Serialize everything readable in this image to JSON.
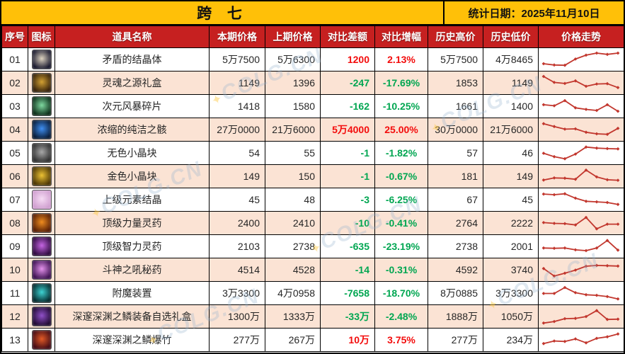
{
  "title": "跨 七",
  "stat_date": "统计日期：2025年11月10日",
  "watermark_text": "COLG.CN",
  "colors": {
    "title_yellow": "#FFC008",
    "header_red": "#C62020",
    "row_alt": "#FBE3D4",
    "up_red": "#F30D0D",
    "down_green": "#00A651",
    "trend_line": "#C2372E",
    "border": "#000000"
  },
  "table": {
    "columns": [
      {
        "key": "index",
        "label": "序号"
      },
      {
        "key": "icon",
        "label": "图标"
      },
      {
        "key": "name",
        "label": "道具名称"
      },
      {
        "key": "current",
        "label": "本期价格"
      },
      {
        "key": "previous",
        "label": "上期价格"
      },
      {
        "key": "diff",
        "label": "对比差额"
      },
      {
        "key": "pct",
        "label": "对比增幅"
      },
      {
        "key": "high",
        "label": "历史高价"
      },
      {
        "key": "low",
        "label": "历史低价"
      },
      {
        "key": "trend",
        "label": "价格走势"
      }
    ],
    "rows": [
      {
        "index": "01",
        "name": "矛盾的结晶体",
        "current": "5万7500",
        "previous": "5万6300",
        "diff": "1200",
        "pct": "2.13%",
        "dir": "up",
        "high": "5万7500",
        "low": "4万8465",
        "icon": {
          "name": "contradiction-crystal-icon",
          "c1": "#ddd3c0",
          "c2": "#17172c"
        },
        "trend": [
          0.25,
          0.17,
          0.15,
          0.55,
          0.8,
          0.93,
          0.85,
          0.93
        ]
      },
      {
        "index": "02",
        "name": "灵魂之源礼盒",
        "current": "1149",
        "previous": "1396",
        "diff": "-247",
        "pct": "-17.69%",
        "dir": "down",
        "high": "1853",
        "low": "1149",
        "icon": {
          "name": "soul-source-giftbox-icon",
          "c1": "#d2a033",
          "c2": "#35200a"
        },
        "trend": [
          0.93,
          0.55,
          0.48,
          0.65,
          0.3,
          0.45,
          0.47,
          0.22
        ]
      },
      {
        "index": "03",
        "name": "次元风暴碎片",
        "current": "1418",
        "previous": "1580",
        "diff": "-162",
        "pct": "-10.25%",
        "dir": "down",
        "high": "1661",
        "low": "1400",
        "icon": {
          "name": "dimension-storm-shard-icon",
          "c1": "#7fd9a0",
          "c2": "#0b2d18"
        },
        "trend": [
          0.62,
          0.55,
          0.88,
          0.42,
          0.32,
          0.25,
          0.62,
          0.2
        ]
      },
      {
        "index": "04",
        "name": "浓缩的纯洁之骸",
        "current": "27万0000",
        "previous": "21万6000",
        "diff": "5万4000",
        "pct": "25.00%",
        "dir": "up",
        "high": "30万0000",
        "low": "21万6000",
        "icon": {
          "name": "condensed-purity-orb-icon",
          "c1": "#3f8ef0",
          "c2": "#071a36"
        },
        "trend": [
          0.9,
          0.72,
          0.55,
          0.57,
          0.35,
          0.25,
          0.22,
          0.6
        ]
      },
      {
        "index": "05",
        "name": "无色小晶块",
        "current": "54",
        "previous": "55",
        "diff": "-1",
        "pct": "-1.82%",
        "dir": "down",
        "high": "57",
        "low": "46",
        "icon": {
          "name": "colorless-cube-icon",
          "c1": "#a8a8a8",
          "c2": "#2e2e2e"
        },
        "trend": [
          0.5,
          0.28,
          0.15,
          0.45,
          0.9,
          0.83,
          0.8,
          0.78
        ]
      },
      {
        "index": "06",
        "name": "金色小晶块",
        "current": "149",
        "previous": "150",
        "diff": "-1",
        "pct": "-0.67%",
        "dir": "down",
        "high": "181",
        "low": "149",
        "icon": {
          "name": "golden-cube-icon",
          "c1": "#ecc234",
          "c2": "#4a3404"
        },
        "trend": [
          0.28,
          0.42,
          0.4,
          0.33,
          0.92,
          0.48,
          0.3,
          0.27
        ]
      },
      {
        "index": "07",
        "name": "上级元素结晶",
        "current": "45",
        "previous": "48",
        "diff": "-3",
        "pct": "-6.25%",
        "dir": "down",
        "high": "67",
        "low": "45",
        "icon": {
          "name": "elemental-crystal-icon",
          "c1": "#f6dcf4",
          "c2": "#cf9ecf"
        },
        "trend": [
          0.88,
          0.84,
          0.9,
          0.62,
          0.42,
          0.38,
          0.34,
          0.22
        ]
      },
      {
        "index": "08",
        "name": "顶级力量灵药",
        "current": "2400",
        "previous": "2410",
        "diff": "-10",
        "pct": "-0.41%",
        "dir": "down",
        "high": "2764",
        "low": "2222",
        "icon": {
          "name": "strength-potion-icon",
          "c1": "#ef8c1f",
          "c2": "#551d05"
        },
        "trend": [
          0.55,
          0.5,
          0.48,
          0.4,
          0.88,
          0.15,
          0.45,
          0.45
        ]
      },
      {
        "index": "09",
        "name": "顶级智力灵药",
        "current": "2103",
        "previous": "2738",
        "diff": "-635",
        "pct": "-23.19%",
        "dir": "down",
        "high": "2738",
        "low": "2001",
        "icon": {
          "name": "intellect-potion-icon",
          "c1": "#c565e2",
          "c2": "#2d0a3e"
        },
        "trend": [
          0.42,
          0.4,
          0.42,
          0.3,
          0.25,
          0.42,
          0.9,
          0.28
        ]
      },
      {
        "index": "10",
        "name": "斗神之吼秘药",
        "current": "4514",
        "previous": "4528",
        "diff": "-14",
        "pct": "-0.31%",
        "dir": "down",
        "high": "4592",
        "low": "3740",
        "icon": {
          "name": "battle-god-elixir-icon",
          "c1": "#e492ec",
          "c2": "#3c1050"
        },
        "trend": [
          0.6,
          0.12,
          0.3,
          0.5,
          0.75,
          0.8,
          0.78,
          0.76
        ]
      },
      {
        "index": "11",
        "name": "附魔装置",
        "current": "3万3300",
        "previous": "4万0958",
        "diff": "-7658",
        "pct": "-18.70%",
        "dir": "down",
        "high": "8万0885",
        "low": "3万3300",
        "icon": {
          "name": "enchant-device-icon",
          "c1": "#3ed2d2",
          "c2": "#04282c"
        },
        "trend": [
          0.5,
          0.5,
          0.88,
          0.55,
          0.42,
          0.38,
          0.3,
          0.15
        ]
      },
      {
        "index": "12",
        "name": "深邃深渊之鳞装备自选礼盒",
        "current": "1300万",
        "previous": "1333万",
        "diff": "-33万",
        "pct": "-2.48%",
        "dir": "down",
        "high": "1888万",
        "low": "1050万",
        "icon": {
          "name": "abyss-scale-equip-giftbox-icon",
          "c1": "#9050c8",
          "c2": "#1e0830"
        },
        "trend": [
          0.1,
          0.2,
          0.38,
          0.4,
          0.52,
          0.9,
          0.33,
          0.35
        ]
      },
      {
        "index": "13",
        "name": "深邃深渊之鳞爆竹",
        "current": "277万",
        "previous": "267万",
        "diff": "10万",
        "pct": "3.75%",
        "dir": "up",
        "high": "277万",
        "low": "234万",
        "icon": {
          "name": "abyss-scale-firecracker-icon",
          "c1": "#e25a26",
          "c2": "#420a14"
        },
        "trend": [
          0.28,
          0.45,
          0.42,
          0.58,
          0.33,
          0.62,
          0.72,
          0.9
        ]
      }
    ]
  }
}
